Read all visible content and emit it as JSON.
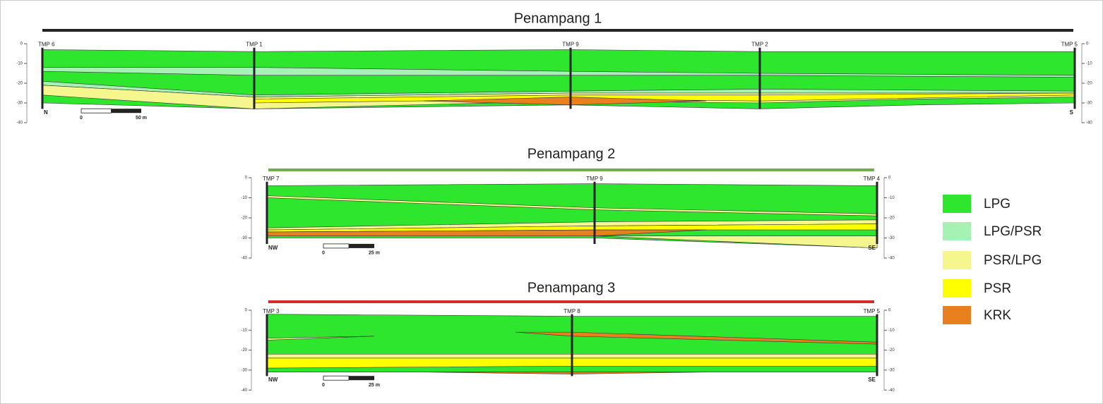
{
  "sections": [
    {
      "title": "Penampang 1",
      "wells": [
        "TMP 6",
        "TMP 1",
        "TMP 9",
        "TMP 2",
        "TMP 5"
      ],
      "depth_ticks": [
        0,
        -10,
        -20,
        -30,
        -40
      ],
      "directions": [
        "N",
        "S"
      ],
      "scale": [
        "0",
        "50 m"
      ]
    },
    {
      "title": "Penampang 2",
      "wells": [
        "TMP 7",
        "TMP 9",
        "TMP 4"
      ],
      "depth_ticks": [
        0,
        -10,
        -20,
        -30,
        -40
      ],
      "directions": [
        "NW",
        "SE"
      ],
      "scale": [
        "0",
        "25 m"
      ]
    },
    {
      "title": "Penampang 3",
      "wells": [
        "TMP 3",
        "TMP 8",
        "TMP 5"
      ],
      "depth_ticks": [
        0,
        -10,
        -20,
        -30,
        -40
      ],
      "directions": [
        "NW",
        "SE"
      ],
      "scale": [
        "0",
        "25 m"
      ]
    }
  ],
  "legend": [
    "LPG",
    "LPG/PSR",
    "PSR/LPG",
    "PSR",
    "KRK"
  ]
}
